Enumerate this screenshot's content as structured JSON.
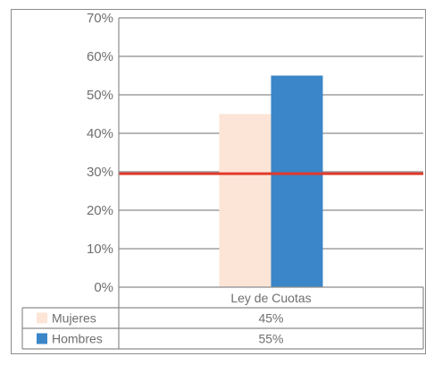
{
  "chart_data": {
    "type": "bar",
    "categories": [
      "Ley de Cuotas"
    ],
    "series": [
      {
        "name": "Mujeres",
        "values": [
          45
        ],
        "value_label": "45%",
        "color": "#fce4d6"
      },
      {
        "name": "Hombres",
        "values": [
          55
        ],
        "value_label": "55%",
        "color": "#3a86c8"
      }
    ],
    "ylim": [
      0,
      70
    ],
    "yticks": [
      0,
      10,
      20,
      30,
      40,
      50,
      60,
      70
    ],
    "ytick_labels": [
      "0%",
      "10%",
      "20%",
      "30%",
      "40%",
      "50%",
      "60%",
      "70%"
    ],
    "reference_line": {
      "value": 29.5,
      "color": "#e0392b"
    },
    "grid": true,
    "legend": "data-table",
    "title": "",
    "xlabel": "",
    "ylabel": ""
  }
}
